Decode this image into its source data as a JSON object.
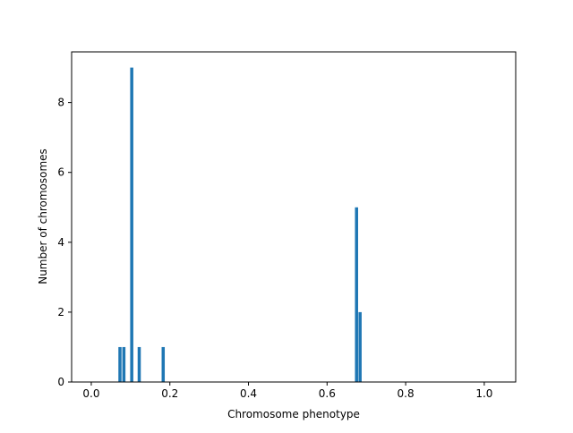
{
  "chart_data": {
    "type": "bar",
    "title": "",
    "xlabel": "Chromosome phenotype",
    "ylabel": "Number of chromosomes",
    "xlim": [
      -0.05,
      1.08
    ],
    "ylim": [
      0,
      9.45
    ],
    "xticks": [
      0.0,
      0.2,
      0.4,
      0.6,
      0.8,
      1.0
    ],
    "xtick_labels": [
      "0.0",
      "0.2",
      "0.4",
      "0.6",
      "0.8",
      "1.0"
    ],
    "yticks": [
      0,
      2,
      4,
      6,
      8
    ],
    "ytick_labels": [
      "0",
      "2",
      "4",
      "6",
      "8"
    ],
    "bar_width": 0.008,
    "grid": false,
    "legend": "none",
    "color": "#1f77b4",
    "x": [
      0.073,
      0.083,
      0.103,
      0.122,
      0.183,
      0.675,
      0.684
    ],
    "values": [
      1,
      1,
      9,
      1,
      1,
      5,
      2
    ]
  }
}
